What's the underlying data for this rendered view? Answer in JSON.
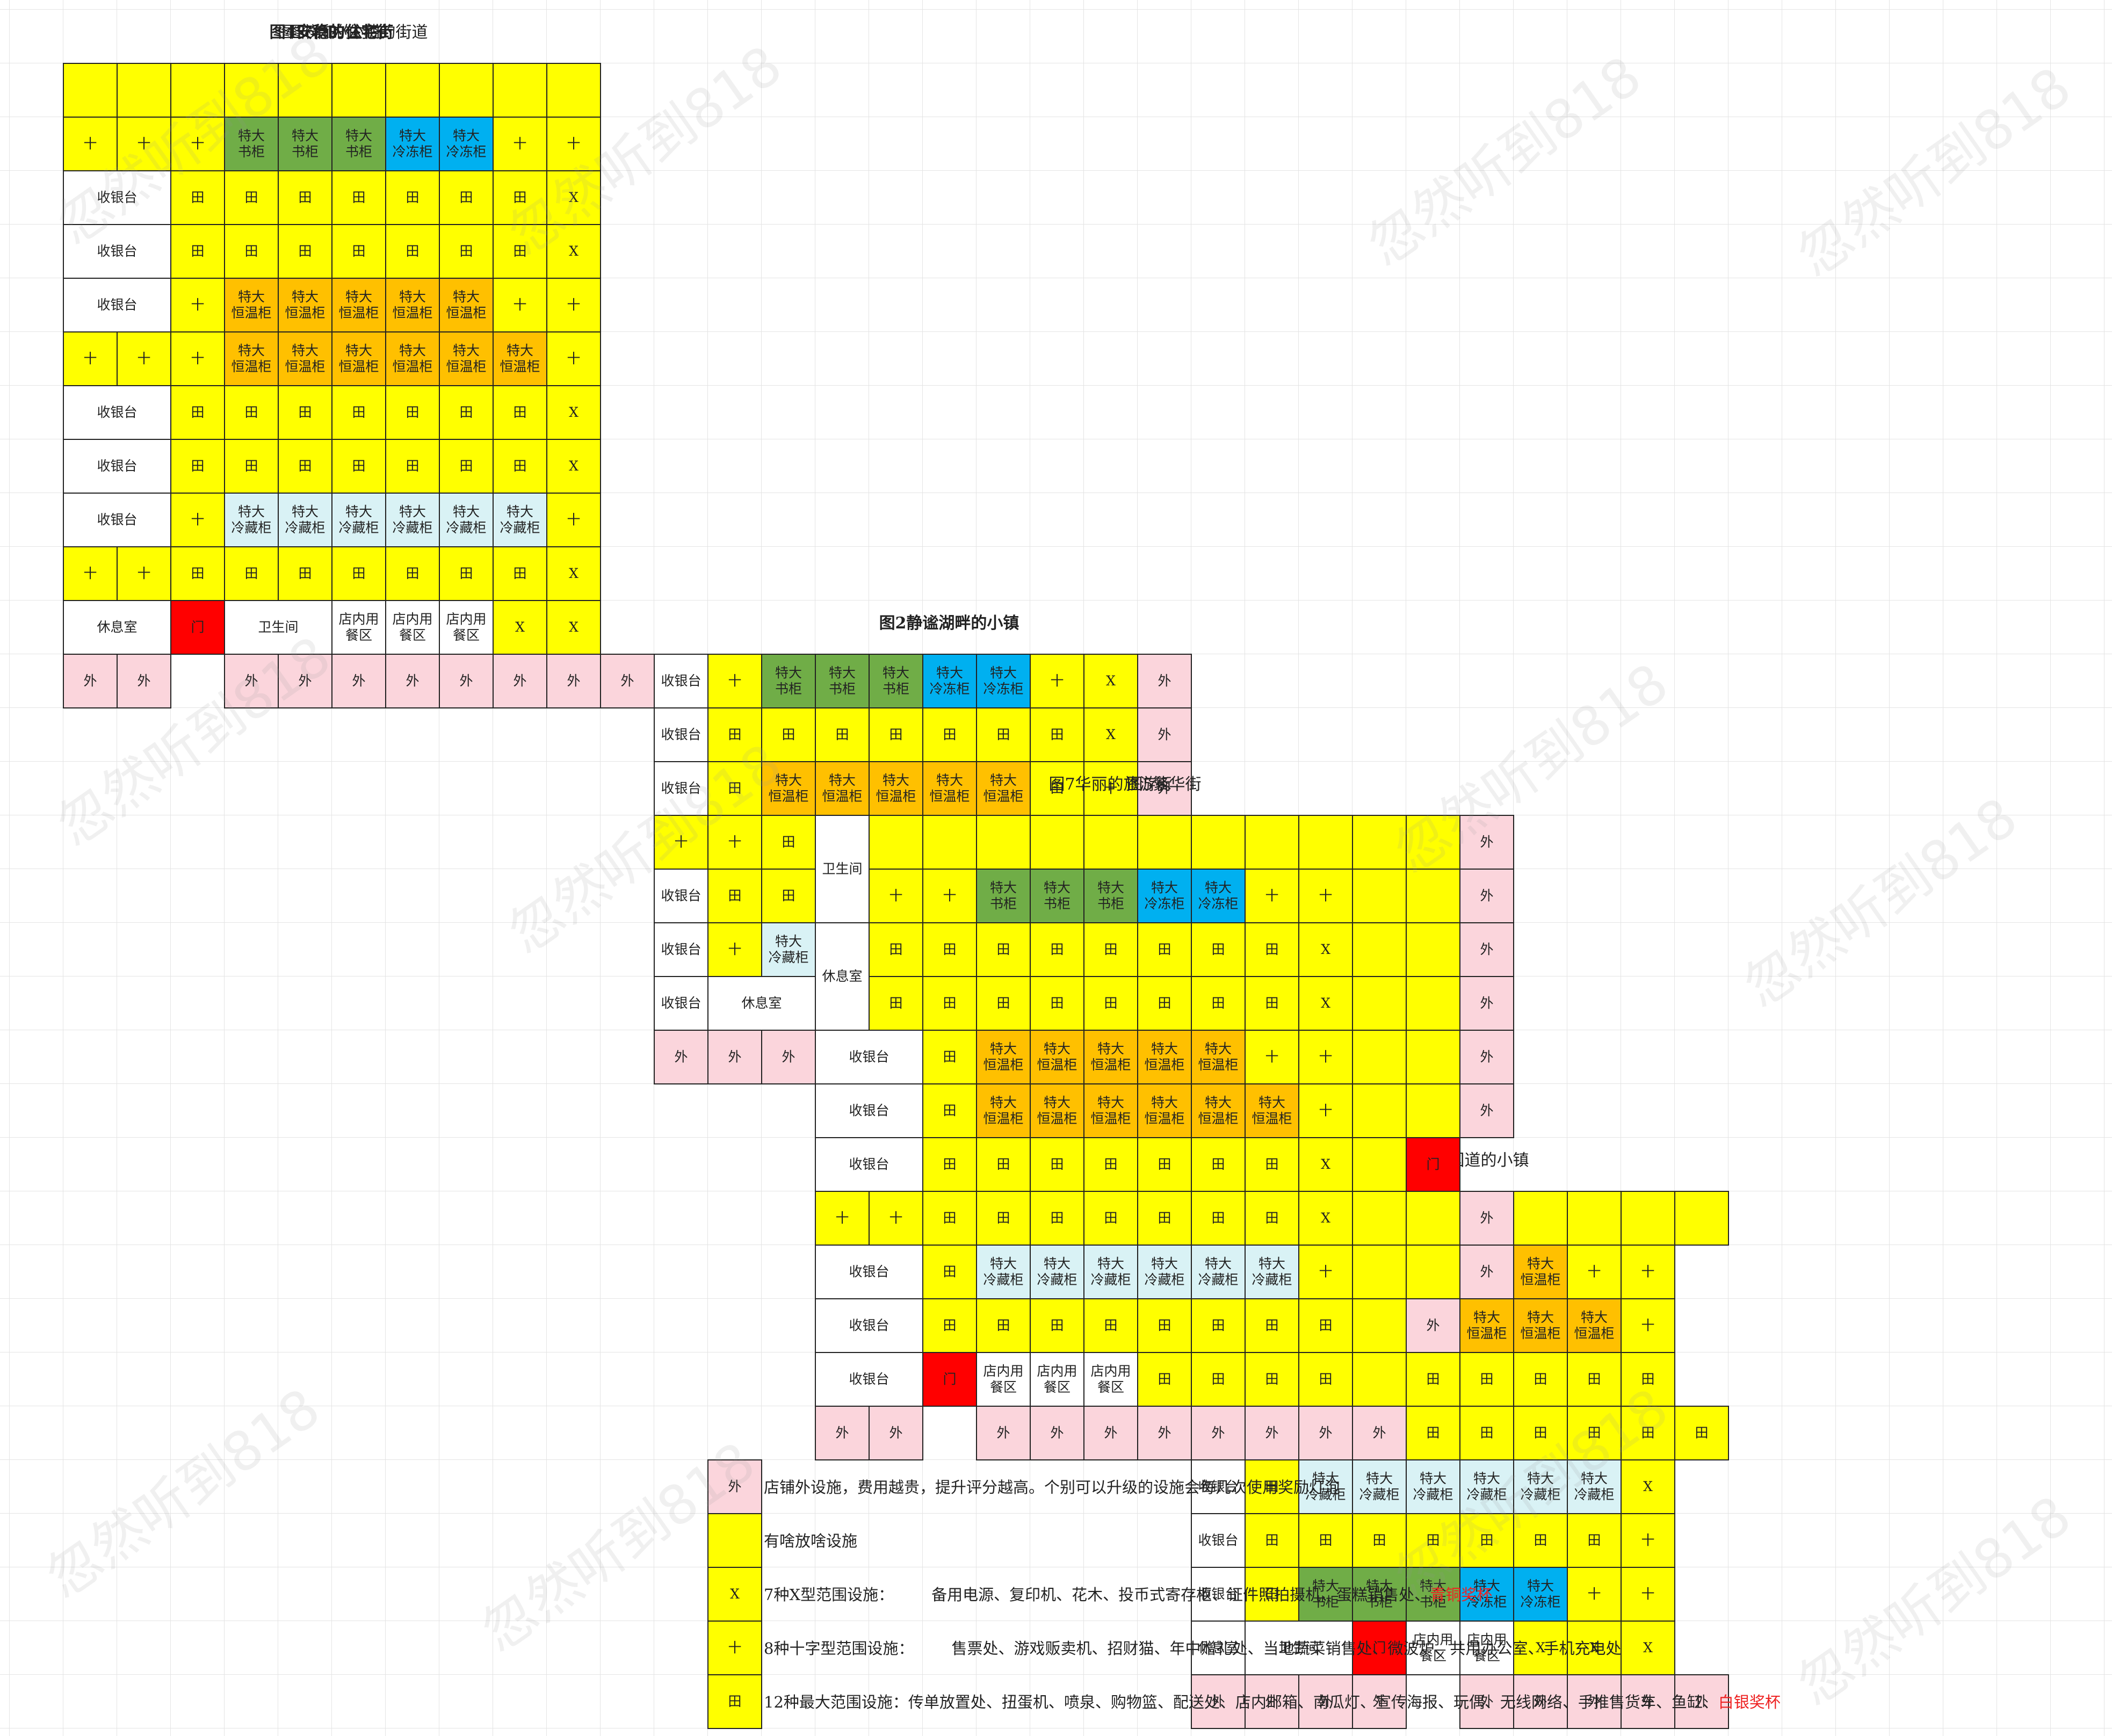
{
  "labels": {
    "cashier": "收银台",
    "lounge": "休息室",
    "toilet": "卫生间",
    "door": "门",
    "dining": "店内用\n餐区",
    "outside": "外",
    "cross": "十",
    "field": "田",
    "x": "X",
    "bookcase": "特大\n书柜",
    "freezer": "特大\n冷冻柜",
    "warmer": "特大\n恒温柜",
    "fridge": "特大\n冷藏柜"
  },
  "layouts": [
    {
      "title": "图1祥和的村庄",
      "bold": false,
      "rows": [
        "Wcashier Ycross Gbookcase Gbookcase Gbookcase Bfreezer Bfreezer Ycross Yx",
        "Wcashier Yfield Yfield Yfield Yfield Yfield Yfield Yfield Yx",
        "Wcashier Yfield Owarmer Owarmer Owarmer Owarmer Owarmer Yfield Ycross",
        "Ycross Ycross Yfield Owarmer Owarmer Owarmer Owarmer Owarmer Owarmer Ycross",
        "Wcashier Yfield Yfield Yfield Yfield Yfield Yfield Yfield Yx",
        "Wcashier Yfield Ycross Cfridge Cfridge Cfridge Yfield Ycross Ycross",
        "Wcashier Yfield Ycross Cfridge Cfridge Cfridge Yfield Ycross Ycross",
        "Wlounge Wtoilet:2 Rdoor Wdining Yx Yx Yx Yx",
        "Poutside Poutside Poutside Poutside _ Poutside Poutside Poutside Poutside Poutside"
      ]
    },
    {
      "title": "图2静谧湖畔的小镇",
      "bold": true,
      "rows": [
        "Wcashier Ycross Gbookcase Gbookcase Gbookcase Bfreezer Bfreezer Ycross Yx Poutside",
        "Wcashier Yfield Yfield Yfield Yfield Yfield Yfield Yfield Yx Poutside",
        "Wcashier Yfield Owarmer Owarmer Owarmer Owarmer Owarmer Yfield Ycross Poutside",
        "Ycross Ycross Yfield Owarmer Owarmer Owarmer Owarmer Owarmer Owarmer Ycross Poutside",
        "Wcashier Yfield Yfield Yfield Yfield Yfield Yfield Yfield Yx Poutside",
        "Wcashier Ycross Cfridge Cfridge Cfridge Cfridge Cfridge Cfridge Ycross Poutside",
        "Wcashier Wlounge:2 Wtoilet:2 Wdining Rdoor Wdining Yx Poutside",
        "Poutside Poutside Poutside Poutside Poutside Poutside Poutside _ Poutside Poutside"
      ]
    },
    {
      "title": "图3邻接国道的小镇",
      "bold": false,
      "rows": [
        "Ycross Ycross Y Y Y Y Y Y Y Y",
        "Wcashier Yfield Owarmer Owarmer Owarmer Owarmer Owarmer Ycross Ycross",
        "Wcashier Yfield Owarmer Owarmer Owarmer Owarmer Owarmer Owarmer Ycross",
        "Wcashier Yfield Yfield Yfield Yfield Yfield Yfield Yfield Yfield",
        "Ycross Ycross Yfield Yfield Yfield Yfield Yfield Yfield Yfield Yfield",
        "Wcashier Yfield Cfridge Cfridge Cfridge Cfridge Cfridge Cfridge Yx",
        "Wcashier Yfield Yfield Yfield Yfield Yfield Yfield Yfield Ycross",
        "Wcashier Yfield Gbookcase Gbookcase Gbookcase Bfreezer Bfreezer Ycross Ycross",
        "Wlounge Wtoilet:2 Rdoor Wdining Wdining Yx Yx Yx",
        "Poutside Poutside Poutside Poutside _ Poutside Poutside Poutside Poutside Poutside"
      ]
    },
    {
      "title": "图4安稳的住宅街",
      "bold": true,
      "rows": [
        "Y Y Y Y Y Y Y Y Y Y",
        "Ycross Ycross Y Y Y Y Y Y Y Y",
        "Wcashier:2 Yfield Yfield Yfield Yfield Yfield Yfield Yfield Y",
        "Wcashier:2 Yfield Owarmer Owarmer Owarmer Owarmer Owarmer Ycross Ycross",
        "Wcashier:2 Yfield Owarmer Owarmer Owarmer Owarmer Owarmer Owarmer Ycross",
        "Ycross Ycross Yfield Yfield Yfield Yfield Yfield Yfield Yfield Ycross",
        "Wcashier:2 Yfield Yfield Yfield Yfield Yfield Yfield Yfield Yx",
        "Wcashier:2 Ycross Cfridge Cfridge Cfridge Cfridge Cfridge Cfridge Ycross",
        "Wcashier:2 Yfield Yfield Yfield Yfield Yfield Yfield Yfield Yx",
        "Ycross Ycross Ycross Gbookcase Gbookcase Gbookcase Bfreezer Bfreezer Ycross Ycross",
        "Wlounge:2 Rdoor Wtoilet:2 Wdining Wdining Yx Yx Yx",
        "Poutside Poutside _ Poutside Poutside Poutside Poutside Poutside Poutside Poutside"
      ]
    },
    {
      "title": "图5繁华街",
      "bold": false,
      "rows": [
        "Ycross Ycross Y Y Y Y Y Y Y Y Y Y Poutside",
        "Wcashier:2 Yfield Ycross Owarmer Owarmer Owarmer Owarmer Owarmer Ycross Ycross Y Poutside",
        "Wcashier:2 Yfield Ycross Owarmer Owarmer Owarmer Owarmer Owarmer Owarmer Ycross Y Poutside",
        "Wcashier:2 Yfield Yfield Yfield Yfield Yfield Yfield Yfield Yfield Yx Y Poutside",
        "Ycross Ycross Yfield Ycross Gbookcase Gbookcase Gbookcase Bfreezer Bfreezer Ycross Ycross Y Poutside",
        "Wcashier:2 Yfield Yfield Yfield Yfield Yfield Yfield Yfield Yfield Yx Y Poutside",
        "Wcashier:2 Ycross Cfridge Cfridge Cfridge Cfridge Cfridge Cfridge Ycross Ycross Rdoor",
        "Wcashier:2 Yfield Yfield Yfield Yfield Yfield Yfield Yfield Yfield Yx Y Poutside",
        "Wlounge:2 Wtoilet:2 Wdining Wdining Wdining Yx Yx Yx Yx Y Poutside",
        "Poutside Poutside Poutside Poutside Poutside Poutside Poutside Poutside Poutside Poutside Poutside Poutside"
      ]
    },
    {
      "title": "图6有办公楼的街道",
      "bold": false,
      "rows": [
        "Y Y Y Y Y Y Y Y Y Y",
        "Ycross Ycross Ycross Gbookcase Gbookcase Gbookcase Bfreezer Bfreezer Ycross Ycross",
        "Wcashier:2 Yfield Yfield Yfield Yfield Yfield Yfield Yfield Yx",
        "Wcashier:2 Yfield Yfield Yfield Yfield Yfield Yfield Yfield Yx",
        "Wcashier:2 Ycross Owarmer Owarmer Owarmer Owarmer Owarmer Ycross Ycross",
        "Ycross Ycross Ycross Owarmer Owarmer Owarmer Owarmer Owarmer Owarmer Ycross",
        "Wcashier:2 Yfield Yfield Yfield Yfield Yfield Yfield Yfield Yx",
        "Wcashier:2 Yfield Yfield Yfield Yfield Yfield Yfield Yfield Yx",
        "Wcashier:2 Ycross Cfridge Cfridge Cfridge Cfridge Cfridge Cfridge Ycross",
        "Ycross Ycross Yfield Yfield Yfield Yfield Yfield Yfield Yfield Yx",
        "Wlounge:2 Rdoor Wtoilet:2 Wdining Wdining Wdining Yx Yx",
        "Poutside Poutside _ Poutside Poutside Poutside Poutside Poutside Poutside Poutside Poutside"
      ]
    },
    {
      "title": "图7华丽的旅游街",
      "bold": false,
      "rows": [
        "Wtoilet Y Y Y Y Y Y Y Y Y Y",
        "^ Ycross Ycross Gbookcase Gbookcase Gbookcase Bfreezer Bfreezer Ycross Ycross Y",
        "Wlounge Yfield Yfield Yfield Yfield Yfield Yfield Yfield Yfield Yx Y",
        "^ Yfield Yfield Yfield Yfield Yfield Yfield Yfield Yfield Yx Y",
        "Wcashier:2 Yfield Owarmer Owarmer Owarmer Owarmer Owarmer Ycross Ycross Y",
        "Wcashier:2 Yfield Owarmer Owarmer Owarmer Owarmer Owarmer Owarmer Ycross Y",
        "Wcashier:2 Yfield Yfield Yfield Yfield Yfield Yfield Yfield Yx Y",
        "Ycross Ycross Yfield Yfield Yfield Yfield Yfield Yfield Yfield Yx Y",
        "Wcashier:2 Yfield Cfridge Cfridge Cfridge Cfridge Cfridge Cfridge Ycross Y",
        "Wcashier:2 Yfield Yfield Yfield Yfield Yfield Yfield Yfield Yfield Y",
        "Wcashier:2 Rdoor Wdining Wdining Wdining Yfield Yfield Yfield Yfield Y",
        "Poutside Poutside _ Poutside Poutside Poutside Poutside Poutside Poutside Poutside Poutside"
      ]
    }
  ],
  "legend": [
    {
      "swatch": "outside",
      "color": "#fbd5dc",
      "label": "店铺外设施，费用越贵，提升评分越高。个别可以升级的设施会每几次使用奖励灯泡",
      "list": "",
      "highlight": ""
    },
    {
      "swatch": "",
      "color": "#ffff00",
      "label": "有啥放啥设施",
      "list": "",
      "highlight": ""
    },
    {
      "swatch": "x",
      "color": "#ffff00",
      "label": "7种X型范围设施：",
      "list": "备用电源、复印机、花木、投币式寄存柜、证件照拍摄机、蛋糕销售处、",
      "highlight": "青铜奖杯"
    },
    {
      "swatch": "cross",
      "color": "#ffff00",
      "label": "8种十字型范围设施：",
      "list": "售票处、游戏贩卖机、招财猫、年中赠礼处、当地蔬菜销售处、微波炉、共用办公室、手机充电处",
      "highlight": ""
    },
    {
      "swatch": "field",
      "color": "#ffff00",
      "label": "12种最大范围设施：传单放置处、扭蛋机、喷泉、购物篮、配送处、店内邮箱、南瓜灯、宣传海报、玩偶、无线网络、手推售货车、鱼缸、",
      "list": "",
      "highlight": "白银奖杯"
    }
  ],
  "watermark": "忽然听到818"
}
